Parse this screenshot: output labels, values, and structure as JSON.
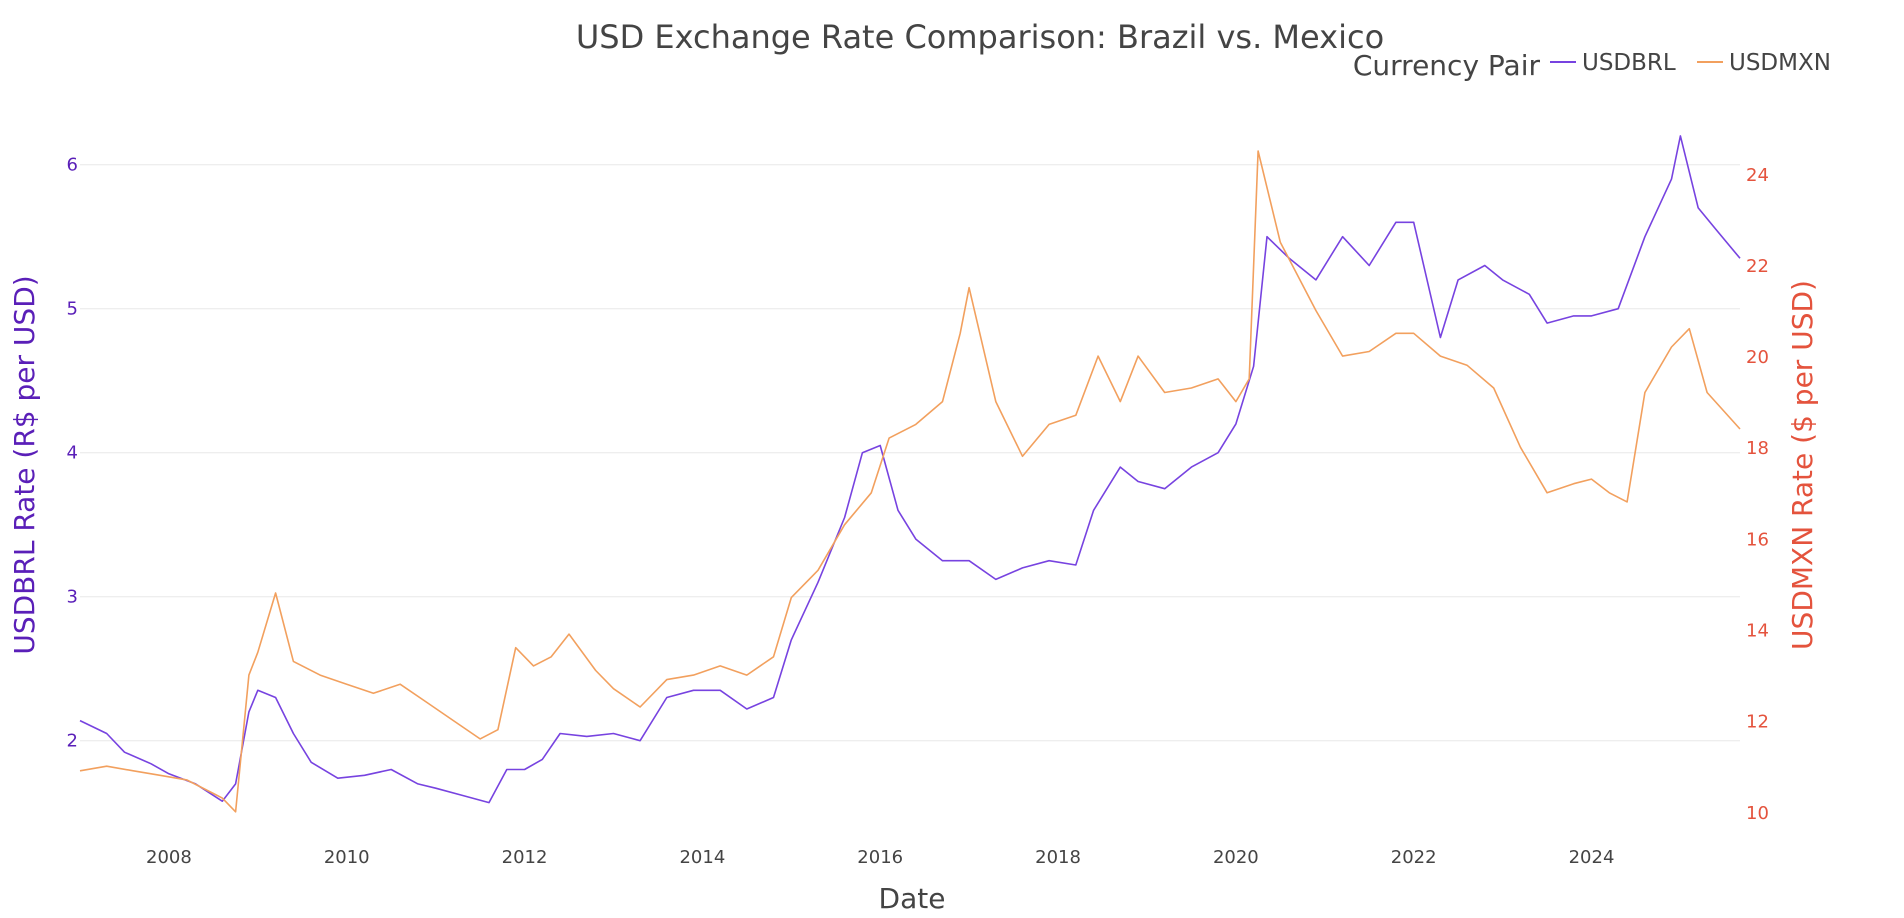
{
  "chart_data": {
    "type": "line",
    "title": "USD Exchange Rate Comparison: Brazil vs. Mexico",
    "xlabel": "Date",
    "ylabel_left": "USDBRL Rate (R$ per USD)",
    "ylabel_right": "USDMXN Rate ($ per USD)",
    "legend_title": "Currency Pair",
    "legend_position": "top-right",
    "x_ticks": [
      "2008",
      "2010",
      "2012",
      "2014",
      "2016",
      "2018",
      "2020",
      "2022",
      "2024"
    ],
    "xlim": [
      2007.0,
      2025.67
    ],
    "y_left_ticks": [
      2,
      3,
      4,
      5,
      6
    ],
    "y_left_lim": [
      1.38,
      6.38
    ],
    "y_right_ticks": [
      10,
      12,
      14,
      16,
      18,
      20,
      22,
      24
    ],
    "y_right_lim": [
      9.6,
      25.4
    ],
    "colors": {
      "USDBRL": "#7743e0",
      "USDMXN": "#f2a05e",
      "left_axis": "#5a1fb8",
      "right_axis": "#e4533d",
      "grid": "#e8e8e8"
    },
    "series": [
      {
        "name": "USDBRL",
        "axis": "left",
        "x": [
          2007.0,
          2007.3,
          2007.5,
          2007.8,
          2008.0,
          2008.3,
          2008.6,
          2008.75,
          2008.9,
          2009.0,
          2009.2,
          2009.4,
          2009.6,
          2009.9,
          2010.2,
          2010.5,
          2010.8,
          2011.0,
          2011.3,
          2011.6,
          2011.8,
          2012.0,
          2012.2,
          2012.4,
          2012.7,
          2013.0,
          2013.3,
          2013.6,
          2013.9,
          2014.2,
          2014.5,
          2014.8,
          2015.0,
          2015.3,
          2015.6,
          2015.8,
          2016.0,
          2016.2,
          2016.4,
          2016.7,
          2017.0,
          2017.3,
          2017.6,
          2017.9,
          2018.2,
          2018.4,
          2018.7,
          2018.9,
          2019.2,
          2019.5,
          2019.8,
          2020.0,
          2020.2,
          2020.35,
          2020.6,
          2020.9,
          2021.2,
          2021.5,
          2021.8,
          2022.0,
          2022.3,
          2022.5,
          2022.8,
          2023.0,
          2023.3,
          2023.5,
          2023.8,
          2024.0,
          2024.3,
          2024.6,
          2024.9,
          2025.0,
          2025.2,
          2025.4,
          2025.67
        ],
        "values": [
          2.14,
          2.05,
          1.92,
          1.84,
          1.77,
          1.7,
          1.58,
          1.7,
          2.2,
          2.35,
          2.3,
          2.05,
          1.85,
          1.74,
          1.76,
          1.8,
          1.7,
          1.67,
          1.62,
          1.57,
          1.8,
          1.8,
          1.87,
          2.05,
          2.03,
          2.05,
          2.0,
          2.3,
          2.35,
          2.35,
          2.22,
          2.3,
          2.7,
          3.1,
          3.55,
          4.0,
          4.05,
          3.6,
          3.4,
          3.25,
          3.25,
          3.12,
          3.2,
          3.25,
          3.22,
          3.6,
          3.9,
          3.8,
          3.75,
          3.9,
          4.0,
          4.2,
          4.6,
          5.5,
          5.35,
          5.2,
          5.5,
          5.3,
          5.6,
          5.6,
          4.8,
          5.2,
          5.3,
          5.2,
          5.1,
          4.9,
          4.95,
          4.95,
          5.0,
          5.5,
          5.9,
          6.2,
          5.7,
          5.55,
          5.35
        ]
      },
      {
        "name": "USDMXN",
        "axis": "right",
        "x": [
          2007.0,
          2007.3,
          2007.6,
          2007.9,
          2008.2,
          2008.5,
          2008.6,
          2008.75,
          2008.9,
          2009.0,
          2009.2,
          2009.4,
          2009.7,
          2010.0,
          2010.3,
          2010.6,
          2010.9,
          2011.2,
          2011.5,
          2011.7,
          2011.9,
          2012.1,
          2012.3,
          2012.5,
          2012.8,
          2013.0,
          2013.3,
          2013.6,
          2013.9,
          2014.2,
          2014.5,
          2014.8,
          2015.0,
          2015.3,
          2015.6,
          2015.9,
          2016.1,
          2016.4,
          2016.7,
          2016.9,
          2017.0,
          2017.3,
          2017.6,
          2017.9,
          2018.2,
          2018.45,
          2018.7,
          2018.9,
          2019.2,
          2019.5,
          2019.8,
          2020.0,
          2020.15,
          2020.25,
          2020.5,
          2020.9,
          2021.2,
          2021.5,
          2021.8,
          2022.0,
          2022.3,
          2022.6,
          2022.9,
          2023.2,
          2023.5,
          2023.8,
          2024.0,
          2024.2,
          2024.4,
          2024.6,
          2024.9,
          2025.1,
          2025.3,
          2025.67
        ],
        "values": [
          10.9,
          11.0,
          10.9,
          10.8,
          10.7,
          10.4,
          10.3,
          10.0,
          13.0,
          13.5,
          14.8,
          13.3,
          13.0,
          12.8,
          12.6,
          12.8,
          12.4,
          12.0,
          11.6,
          11.8,
          13.6,
          13.2,
          13.4,
          13.9,
          13.1,
          12.7,
          12.3,
          12.9,
          13.0,
          13.2,
          13.0,
          13.4,
          14.7,
          15.3,
          16.3,
          17.0,
          18.2,
          18.5,
          19.0,
          20.5,
          21.5,
          19.0,
          17.8,
          18.5,
          18.7,
          20.0,
          19.0,
          20.0,
          19.2,
          19.3,
          19.5,
          19.0,
          19.5,
          24.5,
          22.5,
          21.0,
          20.0,
          20.1,
          20.5,
          20.5,
          20.0,
          19.8,
          19.3,
          18.0,
          17.0,
          17.2,
          17.3,
          17.0,
          16.8,
          19.2,
          20.2,
          20.6,
          19.2,
          18.4
        ]
      }
    ]
  }
}
